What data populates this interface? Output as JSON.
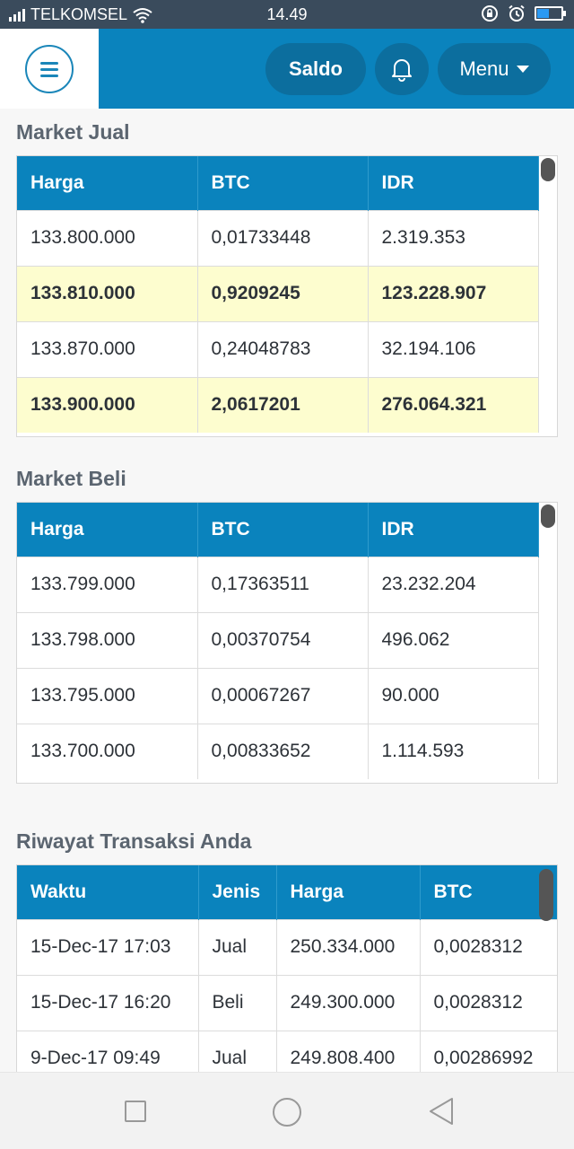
{
  "status_bar": {
    "carrier": "TELKOMSEL",
    "time": "14.49",
    "icons": [
      "signal-icon",
      "wifi-icon",
      "rotation-lock-icon",
      "alarm-icon",
      "battery-icon"
    ],
    "battery_level": 0.45
  },
  "header": {
    "menu_icon": "hamburger-icon",
    "saldo_label": "Saldo",
    "bell_icon": "bell-icon",
    "menu_label": "Menu",
    "colors": {
      "bar": "#0a83bd",
      "pill": "#0c6e9e"
    }
  },
  "market_jual": {
    "title": "Market Jual",
    "columns": [
      "Harga",
      "BTC",
      "IDR"
    ],
    "rows": [
      {
        "cells": [
          "133.800.000",
          "0,01733448",
          "2.319.353"
        ],
        "highlight": false
      },
      {
        "cells": [
          "133.810.000",
          "0,9209245",
          "123.228.907"
        ],
        "highlight": true
      },
      {
        "cells": [
          "133.870.000",
          "0,24048783",
          "32.194.106"
        ],
        "highlight": false
      },
      {
        "cells": [
          "133.900.000",
          "2,0617201",
          "276.064.321"
        ],
        "highlight": true
      }
    ]
  },
  "market_beli": {
    "title": "Market Beli",
    "columns": [
      "Harga",
      "BTC",
      "IDR"
    ],
    "rows": [
      {
        "cells": [
          "133.799.000",
          "0,17363511",
          "23.232.204"
        ],
        "highlight": false
      },
      {
        "cells": [
          "133.798.000",
          "0,00370754",
          "496.062"
        ],
        "highlight": false
      },
      {
        "cells": [
          "133.795.000",
          "0,00067267",
          "90.000"
        ],
        "highlight": false
      },
      {
        "cells": [
          "133.700.000",
          "0,00833652",
          "1.114.593"
        ],
        "highlight": false
      }
    ]
  },
  "riwayat": {
    "title": "Riwayat Transaksi Anda",
    "columns": [
      "Waktu",
      "Jenis",
      "Harga",
      "BTC"
    ],
    "rows": [
      {
        "cells": [
          "15-Dec-17 17:03",
          "Jual",
          "250.334.000",
          "0,0028312"
        ]
      },
      {
        "cells": [
          "15-Dec-17 16:20",
          "Beli",
          "249.300.000",
          "0,0028312"
        ]
      },
      {
        "cells": [
          "9-Dec-17 09:49",
          "Jual",
          "249.808.400",
          "0,00286992"
        ]
      }
    ]
  },
  "nav_bar": {
    "icons": [
      "recents-icon",
      "home-icon",
      "back-icon"
    ]
  },
  "colors": {
    "highlight_row": "#fdfdcf",
    "table_header": "#0a83bd",
    "title_text": "#5b6570"
  }
}
